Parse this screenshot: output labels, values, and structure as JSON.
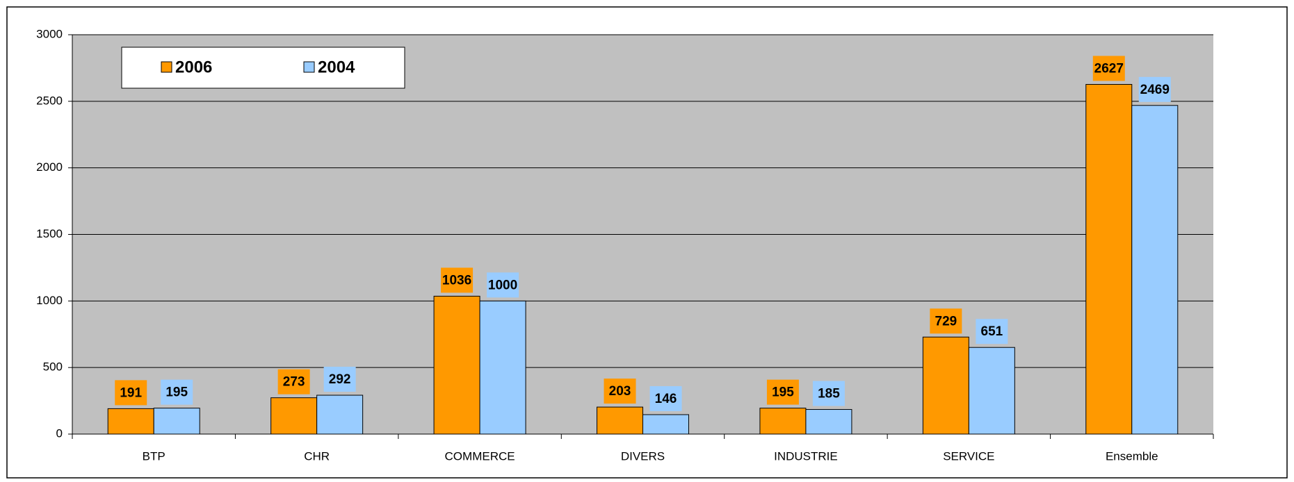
{
  "chart_data": {
    "type": "bar",
    "categories": [
      "BTP",
      "CHR",
      "COMMERCE",
      "DIVERS",
      "INDUSTRIE",
      "SERVICE",
      "Ensemble"
    ],
    "series": [
      {
        "name": "2006",
        "color": "#ff9900",
        "values": [
          191,
          273,
          1036,
          203,
          195,
          729,
          2627
        ]
      },
      {
        "name": "2004",
        "color": "#99ccff",
        "values": [
          195,
          292,
          1000,
          146,
          185,
          651,
          2469
        ]
      }
    ],
    "ylim": [
      0,
      3000
    ],
    "yticks": [
      0,
      500,
      1000,
      1500,
      2000,
      2500,
      3000
    ],
    "grid": true
  }
}
